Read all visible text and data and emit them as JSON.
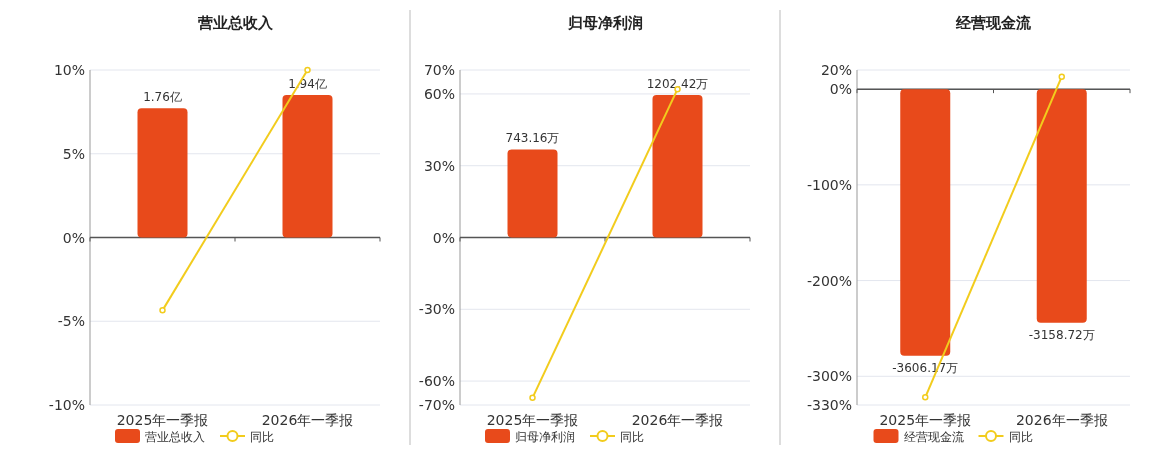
{
  "chart_data": [
    {
      "type": "bar",
      "title": "营业总收入",
      "categories": [
        "2025年一季报",
        "2026年一季报"
      ],
      "ylim": [
        -10,
        10
      ],
      "yticks": [
        {
          "value": 10,
          "label": "10%"
        },
        {
          "value": 5,
          "label": "5%"
        },
        {
          "value": 0,
          "label": "0%"
        },
        {
          "value": -5,
          "label": "-5%"
        },
        {
          "value": -10,
          "label": "-10%"
        }
      ],
      "y2lim": [
        -2.28,
        2.28
      ],
      "grid": "y",
      "legend": "bottom",
      "marker": "circle",
      "series": [
        {
          "name": "营业总收入",
          "axis": "y2",
          "color": "#e84a1b",
          "values": [
            1.76,
            1.94
          ],
          "value_labels": [
            "1.76亿",
            "1.94亿"
          ]
        },
        {
          "name": "同比",
          "type": "line",
          "color": "#f2cc1d",
          "values": [
            -4.35,
            10
          ]
        }
      ]
    },
    {
      "type": "bar",
      "title": "归母净利润",
      "categories": [
        "2025年一季报",
        "2026年一季报"
      ],
      "ylim": [
        -70,
        70
      ],
      "yticks": [
        {
          "value": 70,
          "label": "70%"
        },
        {
          "value": 60,
          "label": "60%"
        },
        {
          "value": 30,
          "label": "30%"
        },
        {
          "value": 0,
          "label": "0%"
        },
        {
          "value": -30,
          "label": "-30%"
        },
        {
          "value": -60,
          "label": "-60%"
        },
        {
          "value": -70,
          "label": "-70%"
        }
      ],
      "y2lim": [
        -1414,
        1414
      ],
      "grid": "y",
      "legend": "bottom",
      "marker": "circle",
      "series": [
        {
          "name": "归母净利润",
          "axis": "y2",
          "color": "#e84a1b",
          "values": [
            743.16,
            1202.42
          ],
          "value_labels": [
            "743.16万",
            "1202.42万"
          ]
        },
        {
          "name": "同比",
          "type": "line",
          "color": "#f2cc1d",
          "values": [
            -67,
            62
          ]
        }
      ]
    },
    {
      "type": "bar",
      "title": "经营现金流",
      "categories": [
        "2025年一季报",
        "2026年一季报"
      ],
      "ylim": [
        -330,
        20
      ],
      "yticks": [
        {
          "value": 20,
          "label": "20%"
        },
        {
          "value": 0,
          "label": "0%"
        },
        {
          "value": -100,
          "label": "-100%"
        },
        {
          "value": -200,
          "label": "-200%"
        },
        {
          "value": -300,
          "label": "-300%"
        },
        {
          "value": -330,
          "label": "-330%"
        }
      ],
      "y2lim": [
        -4273,
        259
      ],
      "grid": "y",
      "legend": "bottom",
      "marker": "circle",
      "series": [
        {
          "name": "经营现金流",
          "axis": "y2",
          "color": "#e84a1b",
          "values": [
            -3606.17,
            -3158.72
          ],
          "value_labels": [
            "-3606.17万",
            "-3158.72万"
          ]
        },
        {
          "name": "同比",
          "type": "line",
          "color": "#f2cc1d",
          "values": [
            -322,
            13
          ]
        }
      ]
    }
  ]
}
